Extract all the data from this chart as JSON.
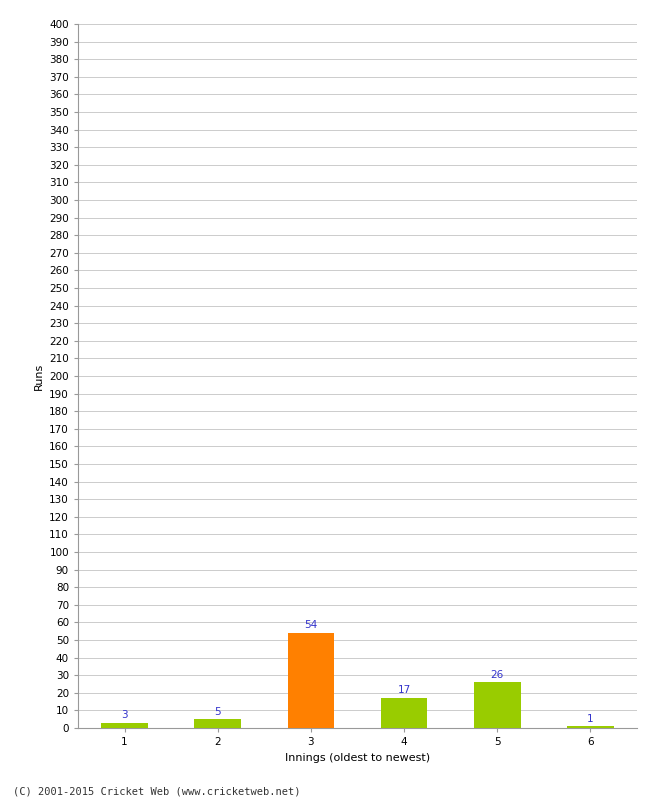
{
  "xlabel": "Innings (oldest to newest)",
  "ylabel": "Runs",
  "categories": [
    "1",
    "2",
    "3",
    "4",
    "5",
    "6"
  ],
  "values": [
    3,
    5,
    54,
    17,
    26,
    1
  ],
  "bar_colors": [
    "#99cc00",
    "#99cc00",
    "#ff8000",
    "#99cc00",
    "#99cc00",
    "#99cc00"
  ],
  "label_color": "#3333cc",
  "ylim": [
    0,
    400
  ],
  "ytick_step": 10,
  "background_color": "#ffffff",
  "footer": "(C) 2001-2015 Cricket Web (www.cricketweb.net)",
  "grid_color": "#cccccc",
  "label_fontsize": 7.5,
  "axis_tick_fontsize": 7.5,
  "axis_label_fontsize": 8,
  "footer_fontsize": 7.5,
  "bar_width": 0.5
}
